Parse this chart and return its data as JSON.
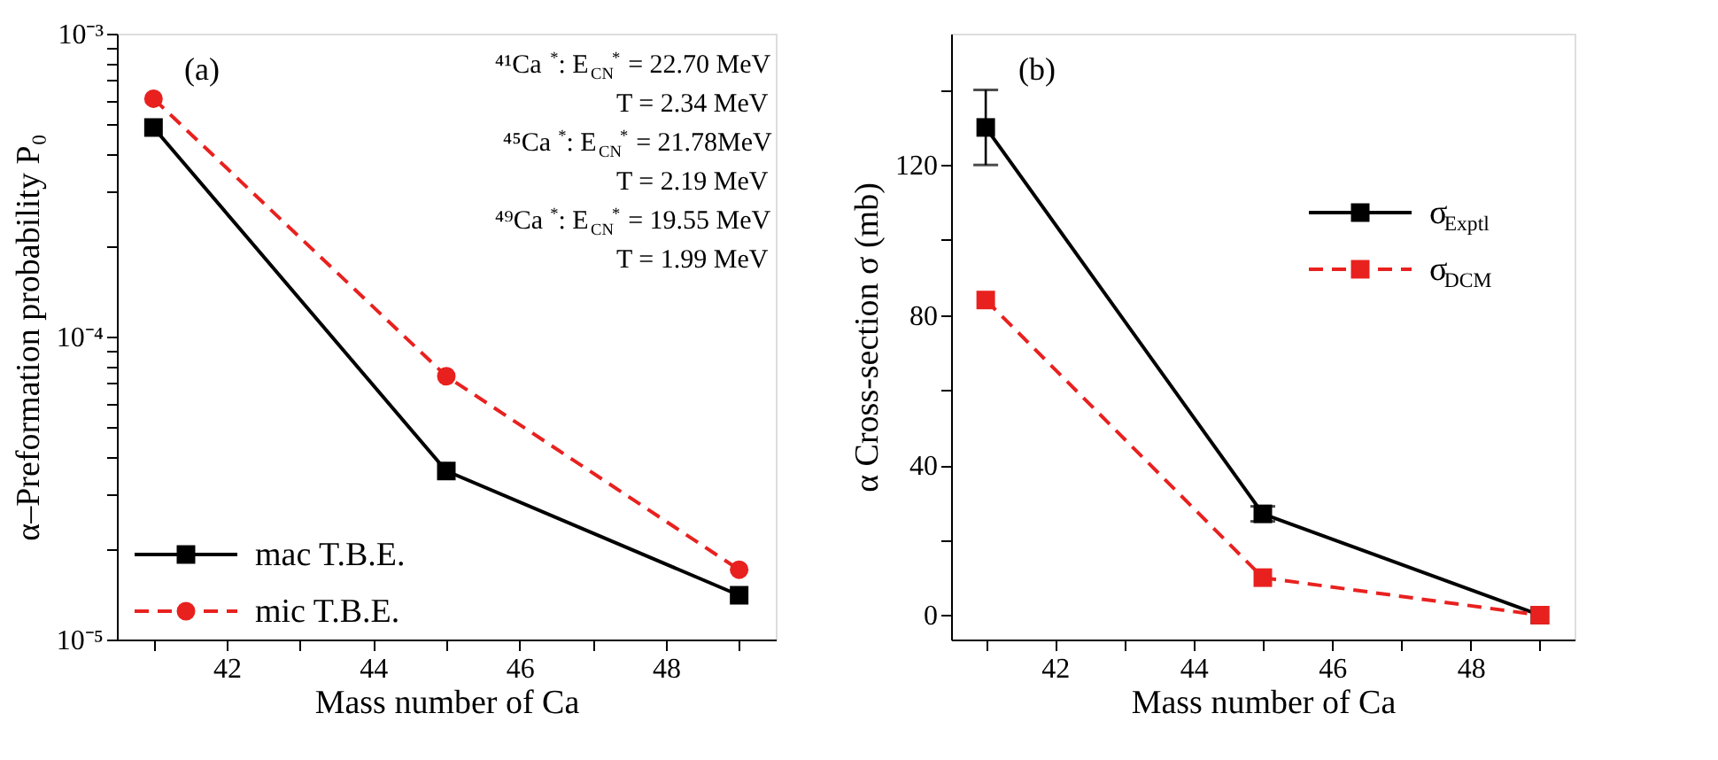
{
  "chart_data": [
    {
      "type": "line",
      "xlabel": "Mass number of Ca",
      "ylabel": "α–Preformation probability P₀",
      "log": "y",
      "grid": false,
      "legend": "bottom left",
      "x": [
        41,
        45,
        49
      ],
      "xlim": [
        40.5,
        49.5
      ],
      "xticks": [
        {
          "value": 41,
          "label": null
        },
        42,
        {
          "value": 43,
          "label": null
        },
        44,
        {
          "value": 45,
          "label": null
        },
        46,
        {
          "value": 47,
          "label": null
        },
        48,
        {
          "value": 49,
          "label": null
        }
      ],
      "ylim": [
        1e-05,
        0.001
      ],
      "yticks": [
        {
          "value": 1e-05,
          "label": "10⁻⁵"
        },
        {
          "value": 2e-05,
          "label": null
        },
        {
          "value": 3e-05,
          "label": null
        },
        {
          "value": 4e-05,
          "label": null
        },
        {
          "value": 5e-05,
          "label": null
        },
        {
          "value": 6e-05,
          "label": null
        },
        {
          "value": 7e-05,
          "label": null
        },
        {
          "value": 8e-05,
          "label": null
        },
        {
          "value": 9e-05,
          "label": null
        },
        {
          "value": 0.0001,
          "label": "10⁻⁴"
        },
        {
          "value": 0.0002,
          "label": null
        },
        {
          "value": 0.0003,
          "label": null
        },
        {
          "value": 0.0004,
          "label": null
        },
        {
          "value": 0.0005,
          "label": null
        },
        {
          "value": 0.0006,
          "label": null
        },
        {
          "value": 0.0007,
          "label": null
        },
        {
          "value": 0.0008,
          "label": null
        },
        {
          "value": 0.0009,
          "label": null
        },
        {
          "value": 0.001,
          "label": "10⁻³"
        }
      ],
      "series": [
        {
          "name": "mac T.B.E.",
          "color": "#000000",
          "marker": "square",
          "line_style": "solid",
          "values": [
            0.00049,
            3.6e-05,
            1.4e-05
          ]
        },
        {
          "name": "mic T.B.E.",
          "color": "#e8211f",
          "marker": "circle",
          "line_style": "dashed",
          "values": [
            0.00061,
            7.4e-05,
            1.7e-05
          ]
        }
      ],
      "annotations": [
        "(a)",
        "⁴¹Ca$^{*}$: E$_{CN}$$^{*}$ = 22.70 MeV",
        "T = 2.34 MeV",
        "⁴⁵Ca$^{*}$: E$_{CN}$$^{*}$ = 21.78MeV",
        "T = 2.19 MeV",
        "⁴⁹Ca$^{*}$: E$_{CN}$$^{*}$ = 19.55 MeV",
        "T = 1.99 MeV"
      ]
    },
    {
      "type": "line",
      "xlabel": "Mass number of Ca",
      "ylabel": "α Cross-section σ (mb)",
      "grid": false,
      "legend": "right",
      "x": [
        41,
        45,
        49
      ],
      "xlim": [
        40.5,
        49.5
      ],
      "xticks": [
        {
          "value": 41,
          "label": null
        },
        42,
        {
          "value": 43,
          "label": null
        },
        44,
        {
          "value": 45,
          "label": null
        },
        46,
        {
          "value": 47,
          "label": null
        },
        48,
        {
          "value": 49,
          "label": null
        }
      ],
      "ylim": [
        -6.5,
        155
      ],
      "yticks": [
        0,
        {
          "value": 20,
          "label": null
        },
        40,
        {
          "value": 60,
          "label": null
        },
        80,
        {
          "value": 100,
          "label": null
        },
        120,
        {
          "value": 140,
          "label": null
        }
      ],
      "series": [
        {
          "name": "σ$_{Exptl}$",
          "color": "#000000",
          "marker": "square",
          "line_style": "solid",
          "values": [
            130,
            27,
            0
          ],
          "errors": [
            10,
            2,
            null
          ]
        },
        {
          "name": "σ$_{DCM}$",
          "color": "#e8211f",
          "marker": "square",
          "line_style": "dashed",
          "values": [
            84,
            10,
            0
          ]
        }
      ],
      "annotations": [
        "(b)"
      ]
    }
  ]
}
